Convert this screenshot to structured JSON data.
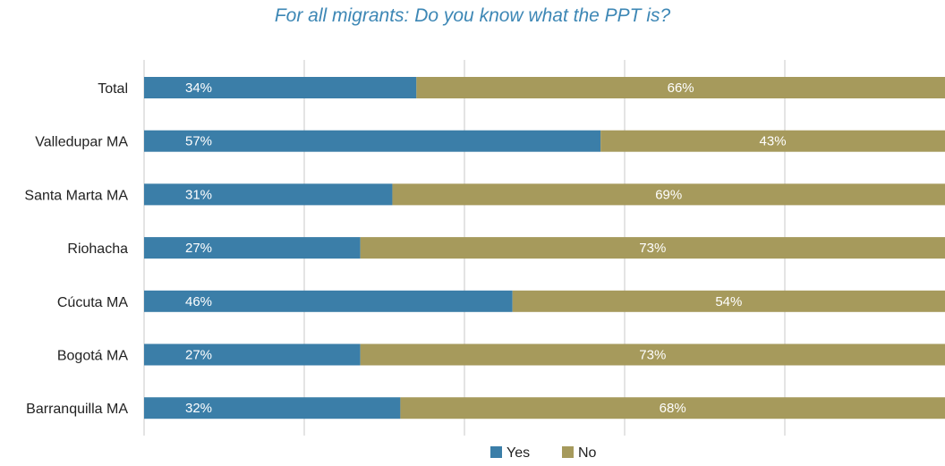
{
  "chart_data": {
    "type": "bar",
    "orientation": "horizontal",
    "stacked": true,
    "title": "For all migrants: Do you know what the PPT is?",
    "categories": [
      "Total",
      "Valledupar MA",
      "Santa Marta MA",
      "Riohacha",
      "Cúcuta MA",
      "Bogotá MA",
      "Barranquilla MA"
    ],
    "series": [
      {
        "name": "Yes",
        "color": "#3b7ea8",
        "values": [
          34,
          57,
          31,
          27,
          46,
          27,
          32
        ],
        "labels": [
          "34%",
          "57%",
          "31%",
          "27%",
          "46%",
          "27%",
          "32%"
        ]
      },
      {
        "name": "No",
        "color": "#a69a5c",
        "values": [
          66,
          43,
          69,
          73,
          54,
          73,
          68
        ],
        "labels": [
          "66%",
          "43%",
          "69%",
          "73%",
          "54%",
          "73%",
          "68%"
        ]
      }
    ],
    "xlim": [
      0,
      100
    ],
    "grid": true,
    "legend": "bottom-center"
  }
}
